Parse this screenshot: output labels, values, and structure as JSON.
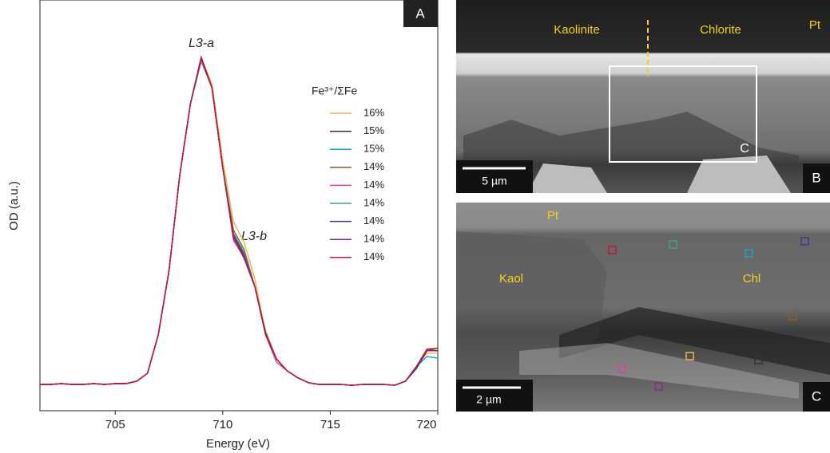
{
  "chart_data": {
    "type": "line",
    "x_label": "Energy (eV)",
    "y_label": "OD (a.u.)",
    "panel_label": "A",
    "annotations": [
      "L3-a",
      "L3-b"
    ],
    "legend_title": "Fe³⁺/ΣFe",
    "x": [
      701.5,
      702,
      702.5,
      703,
      703.5,
      704,
      704.5,
      705,
      705.5,
      706,
      706.5,
      707,
      707.5,
      708,
      708.5,
      709,
      709.5,
      710,
      710.5,
      711,
      711.5,
      712,
      712.5,
      713,
      713.5,
      714,
      714.5,
      715,
      715.5,
      716,
      716.5,
      717,
      717.5,
      718,
      718.5,
      719,
      719.5,
      720
    ],
    "xlim": [
      701.5,
      720
    ],
    "xticks": [
      705,
      710,
      715,
      720
    ],
    "ylim": [
      0,
      100
    ],
    "series": [
      {
        "name": "16%",
        "color": "#e8b64a",
        "values": [
          6.4,
          6.4,
          6.6,
          6.4,
          6.4,
          6.6,
          6.4,
          6.6,
          6.6,
          7.2,
          9.1,
          18.4,
          34.0,
          57.3,
          74.8,
          86.0,
          79.5,
          61.0,
          46.0,
          41.0,
          32.0,
          18.4,
          12.6,
          9.7,
          8.0,
          6.8,
          6.4,
          6.4,
          6.4,
          6.2,
          6.4,
          6.4,
          6.4,
          6.2,
          7.2,
          10.7,
          14.0,
          14.0
        ]
      },
      {
        "name": "15%",
        "color": "#333333",
        "values": [
          6.4,
          6.4,
          6.6,
          6.4,
          6.4,
          6.6,
          6.4,
          6.6,
          6.6,
          7.2,
          9.1,
          18.4,
          34.0,
          57.3,
          74.8,
          86.0,
          78.6,
          59.2,
          43.0,
          38.0,
          30.1,
          18.4,
          12.6,
          9.7,
          8.0,
          6.8,
          6.4,
          6.4,
          6.4,
          6.2,
          6.4,
          6.4,
          6.4,
          6.2,
          7.2,
          10.7,
          15.0,
          15.2
        ]
      },
      {
        "name": "15%",
        "color": "#1ba3c6",
        "values": [
          6.4,
          6.4,
          6.6,
          6.4,
          6.4,
          6.6,
          6.4,
          6.6,
          6.6,
          7.2,
          9.1,
          18.4,
          34.0,
          57.3,
          74.8,
          85.0,
          78.6,
          59.2,
          42.5,
          38.0,
          30.1,
          18.4,
          12.6,
          9.7,
          8.0,
          6.8,
          6.4,
          6.4,
          6.4,
          6.2,
          6.4,
          6.4,
          6.4,
          6.2,
          7.2,
          10.7,
          13.2,
          12.8
        ]
      },
      {
        "name": "14%",
        "color": "#8b5a2b",
        "values": [
          6.4,
          6.4,
          6.6,
          6.4,
          6.4,
          6.6,
          6.4,
          6.6,
          6.6,
          7.2,
          9.1,
          18.4,
          34.0,
          57.3,
          74.8,
          86.0,
          78.6,
          59.2,
          44.0,
          39.2,
          30.1,
          19.2,
          12.6,
          9.7,
          8.0,
          6.8,
          6.4,
          6.4,
          6.4,
          6.2,
          6.4,
          6.4,
          6.4,
          6.2,
          7.2,
          10.7,
          14.6,
          14.6
        ]
      },
      {
        "name": "14%",
        "color": "#e040a0",
        "values": [
          6.4,
          6.4,
          6.6,
          6.4,
          6.4,
          6.6,
          6.4,
          6.6,
          6.6,
          7.2,
          9.1,
          18.4,
          34.0,
          57.3,
          74.8,
          85.5,
          78.6,
          59.2,
          41.5,
          37.2,
          30.1,
          18.4,
          11.8,
          9.7,
          8.0,
          6.8,
          6.4,
          6.4,
          6.4,
          6.2,
          6.4,
          6.4,
          6.4,
          6.2,
          7.2,
          10.7,
          14.6,
          14.6
        ]
      },
      {
        "name": "14%",
        "color": "#3aa57a",
        "values": [
          6.4,
          6.4,
          6.6,
          6.4,
          6.4,
          6.6,
          6.4,
          6.6,
          6.6,
          7.2,
          9.1,
          18.4,
          34.0,
          57.3,
          74.8,
          86.0,
          78.6,
          59.2,
          43.2,
          38.5,
          30.1,
          18.4,
          12.6,
          9.7,
          8.0,
          6.8,
          6.4,
          6.4,
          6.4,
          6.2,
          6.4,
          6.4,
          6.4,
          6.2,
          7.2,
          10.7,
          14.6,
          14.6
        ]
      },
      {
        "name": "14%",
        "color": "#3a3a9a",
        "values": [
          6.4,
          6.4,
          6.6,
          6.4,
          6.4,
          6.6,
          6.4,
          6.6,
          6.6,
          7.2,
          9.1,
          18.4,
          34.0,
          57.3,
          74.8,
          86.0,
          78.6,
          59.2,
          42.8,
          37.8,
          30.1,
          18.4,
          12.6,
          9.7,
          8.0,
          6.8,
          6.4,
          6.4,
          6.4,
          6.2,
          6.4,
          6.4,
          6.4,
          6.2,
          7.2,
          10.2,
          14.6,
          14.6
        ]
      },
      {
        "name": "14%",
        "color": "#8a2a8a",
        "values": [
          6.4,
          6.4,
          6.6,
          6.4,
          6.4,
          6.6,
          6.4,
          6.6,
          6.6,
          7.2,
          9.1,
          18.4,
          34.0,
          57.3,
          74.8,
          86.0,
          78.6,
          59.2,
          42.0,
          37.5,
          30.1,
          18.4,
          12.6,
          9.7,
          8.0,
          6.8,
          6.4,
          6.4,
          6.4,
          6.2,
          6.4,
          6.4,
          6.4,
          6.2,
          7.2,
          10.7,
          14.6,
          14.6
        ]
      },
      {
        "name": "14%",
        "color": "#c0143c",
        "values": [
          6.4,
          6.4,
          6.6,
          6.4,
          6.4,
          6.6,
          6.4,
          6.6,
          6.6,
          7.2,
          9.1,
          18.4,
          34.0,
          57.3,
          74.8,
          86.0,
          78.6,
          59.2,
          42.2,
          37.0,
          30.1,
          18.4,
          12.6,
          9.7,
          8.0,
          6.8,
          6.4,
          6.4,
          6.4,
          6.2,
          6.4,
          6.4,
          6.4,
          6.2,
          7.2,
          10.7,
          15.0,
          14.6
        ]
      }
    ]
  },
  "images": [
    {
      "label": "B",
      "texts": [
        "Kaolinite",
        "Chlorite",
        "Pt",
        "C"
      ],
      "scale_bar": "5 µm"
    },
    {
      "label": "C",
      "texts": [
        "Pt",
        "Kaol",
        "Chl"
      ],
      "scale_bar": "2 µm"
    }
  ]
}
